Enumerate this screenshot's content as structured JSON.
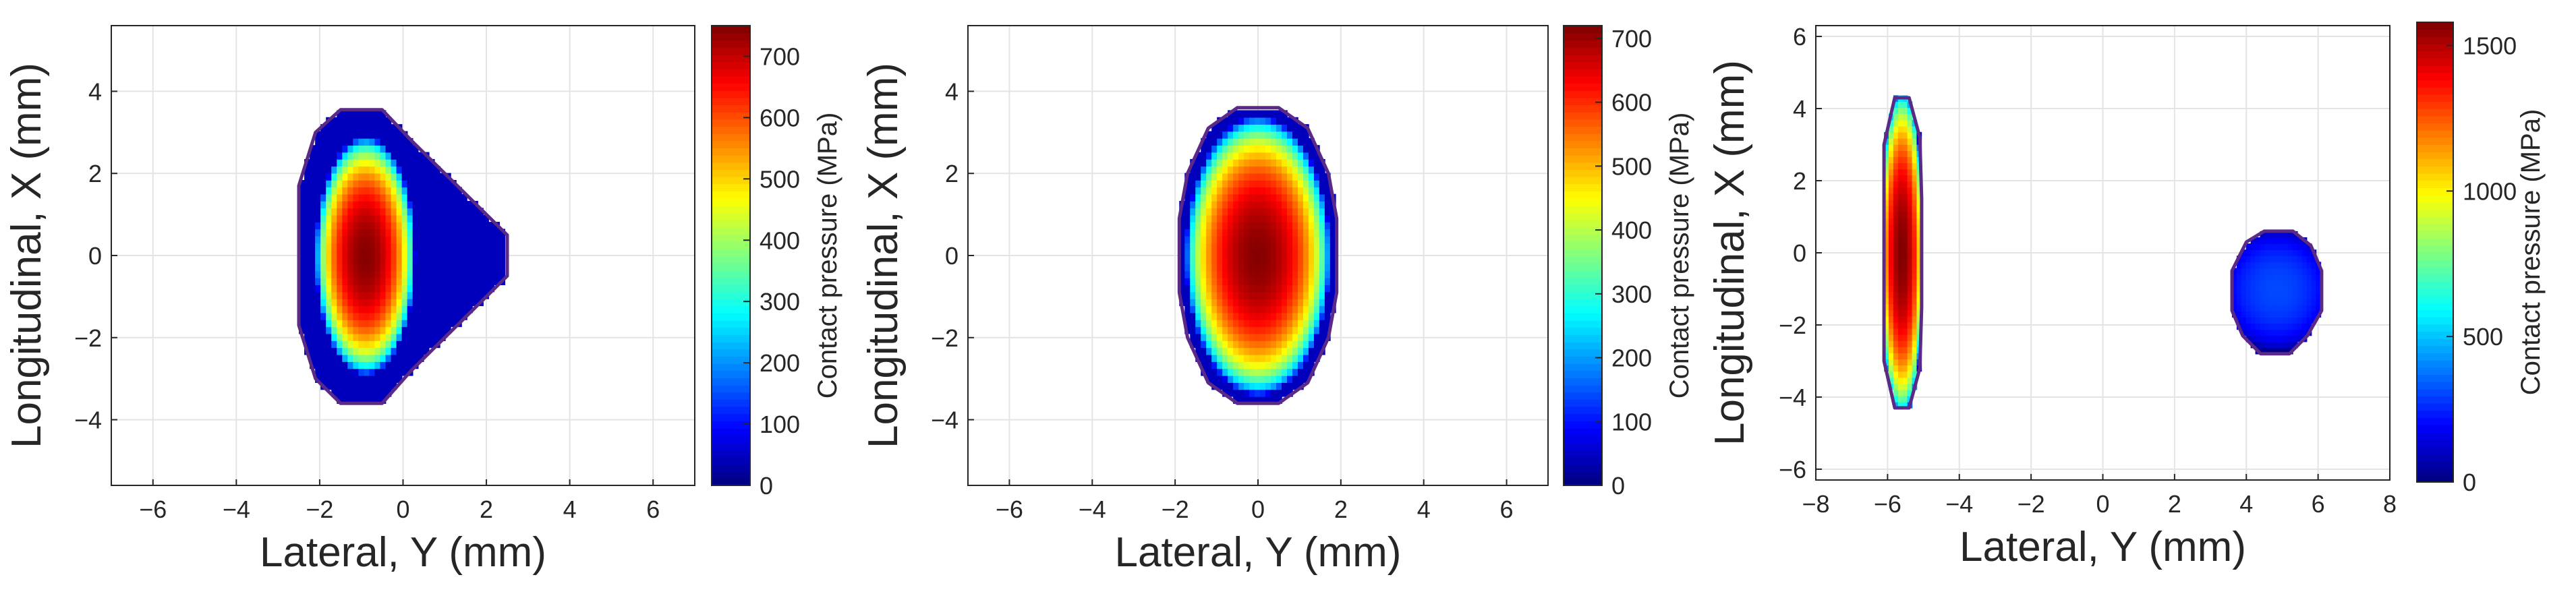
{
  "figure": {
    "background": "#ffffff"
  },
  "chart_data": [
    {
      "type": "heatmap",
      "title": "",
      "xlabel": "Lateral, Y (mm)",
      "ylabel": "Longitudinal, X (mm)",
      "xlim": [
        -7,
        7
      ],
      "ylim": [
        -5.6,
        5.6
      ],
      "xticks": [
        -6,
        -4,
        -2,
        0,
        2,
        4,
        6
      ],
      "yticks": [
        -4,
        -2,
        0,
        2,
        4
      ],
      "grid": true,
      "colorbar": {
        "label": "Contact pressure (MPa)",
        "range": [
          0,
          750
        ],
        "ticks": [
          0,
          100,
          200,
          300,
          400,
          500,
          600,
          700
        ]
      },
      "colormap": "jet",
      "contacts": [
        {
          "peak_pressure": 745,
          "peak_center": [
            -0.9,
            0
          ],
          "spread_y": 1.2,
          "spread_x": 2.9,
          "outline": [
            [
              -2.5,
              1.7
            ],
            [
              -2.1,
              3.0
            ],
            [
              -1.5,
              3.55
            ],
            [
              -0.5,
              3.55
            ],
            [
              0.2,
              2.8
            ],
            [
              1.0,
              2.0
            ],
            [
              2.5,
              0.5
            ],
            [
              2.5,
              -0.5
            ],
            [
              1.0,
              -2.0
            ],
            [
              0.2,
              -2.8
            ],
            [
              -0.5,
              -3.6
            ],
            [
              -1.5,
              -3.6
            ],
            [
              -2.1,
              -3.0
            ],
            [
              -2.5,
              -1.7
            ]
          ]
        }
      ]
    },
    {
      "type": "heatmap",
      "title": "",
      "xlabel": "Lateral, Y (mm)",
      "ylabel": "Longitudinal, X (mm)",
      "xlim": [
        -7,
        7
      ],
      "ylim": [
        -5.6,
        5.6
      ],
      "xticks": [
        -6,
        -4,
        -2,
        0,
        2,
        4,
        6
      ],
      "yticks": [
        -4,
        -2,
        0,
        2,
        4
      ],
      "grid": true,
      "colorbar": {
        "label": "Contact pressure (MPa)",
        "range": [
          0,
          720
        ],
        "ticks": [
          0,
          100,
          200,
          300,
          400,
          500,
          600,
          700
        ]
      },
      "colormap": "jet",
      "contacts": [
        {
          "peak_pressure": 715,
          "peak_center": [
            0,
            0
          ],
          "spread_y": 1.75,
          "spread_x": 3.4,
          "outline": [
            [
              -1.9,
              0.9
            ],
            [
              -1.7,
              2.0
            ],
            [
              -1.2,
              3.1
            ],
            [
              -0.5,
              3.6
            ],
            [
              0.5,
              3.6
            ],
            [
              1.2,
              3.1
            ],
            [
              1.7,
              2.0
            ],
            [
              1.9,
              0.9
            ],
            [
              1.9,
              -0.9
            ],
            [
              1.7,
              -2.0
            ],
            [
              1.2,
              -3.1
            ],
            [
              0.5,
              -3.6
            ],
            [
              -0.5,
              -3.6
            ],
            [
              -1.2,
              -3.1
            ],
            [
              -1.7,
              -2.0
            ],
            [
              -1.9,
              -0.9
            ]
          ]
        }
      ]
    },
    {
      "type": "heatmap",
      "title": "",
      "xlabel": "Lateral, Y (mm)",
      "ylabel": "Longitudinal, X (mm)",
      "xlim": [
        -8,
        8
      ],
      "ylim": [
        -6.3,
        6.3
      ],
      "xticks": [
        -8,
        -6,
        -4,
        -2,
        0,
        2,
        4,
        6,
        8
      ],
      "yticks": [
        -6,
        -4,
        -2,
        0,
        2,
        4,
        6
      ],
      "grid": true,
      "colorbar": {
        "label": "Contact pressure (MPa)",
        "range": [
          0,
          1580
        ],
        "ticks": [
          0,
          500,
          1000,
          1500
        ]
      },
      "colormap": "jet",
      "contacts": [
        {
          "peak_pressure": 1580,
          "peak_center": [
            -5.6,
            0
          ],
          "spread_y": 0.65,
          "spread_x": 4.6,
          "outline": [
            [
              -6.1,
              3.0
            ],
            [
              -5.8,
              4.3
            ],
            [
              -5.4,
              4.3
            ],
            [
              -5.1,
              3.2
            ],
            [
              -5.05,
              1.5
            ],
            [
              -5.05,
              -1.5
            ],
            [
              -5.1,
              -3.2
            ],
            [
              -5.4,
              -4.3
            ],
            [
              -5.8,
              -4.3
            ],
            [
              -6.1,
              -3.0
            ]
          ]
        },
        {
          "peak_pressure": 310,
          "peak_center": [
            4.85,
            -1.0
          ],
          "spread_y": 1.6,
          "spread_x": 1.7,
          "outline": [
            [
              3.6,
              -0.5
            ],
            [
              4.0,
              0.3
            ],
            [
              4.5,
              0.6
            ],
            [
              5.3,
              0.6
            ],
            [
              5.8,
              0.2
            ],
            [
              6.1,
              -0.5
            ],
            [
              6.1,
              -1.6
            ],
            [
              5.7,
              -2.3
            ],
            [
              5.2,
              -2.8
            ],
            [
              4.4,
              -2.8
            ],
            [
              3.9,
              -2.3
            ],
            [
              3.6,
              -1.6
            ]
          ]
        }
      ]
    }
  ]
}
